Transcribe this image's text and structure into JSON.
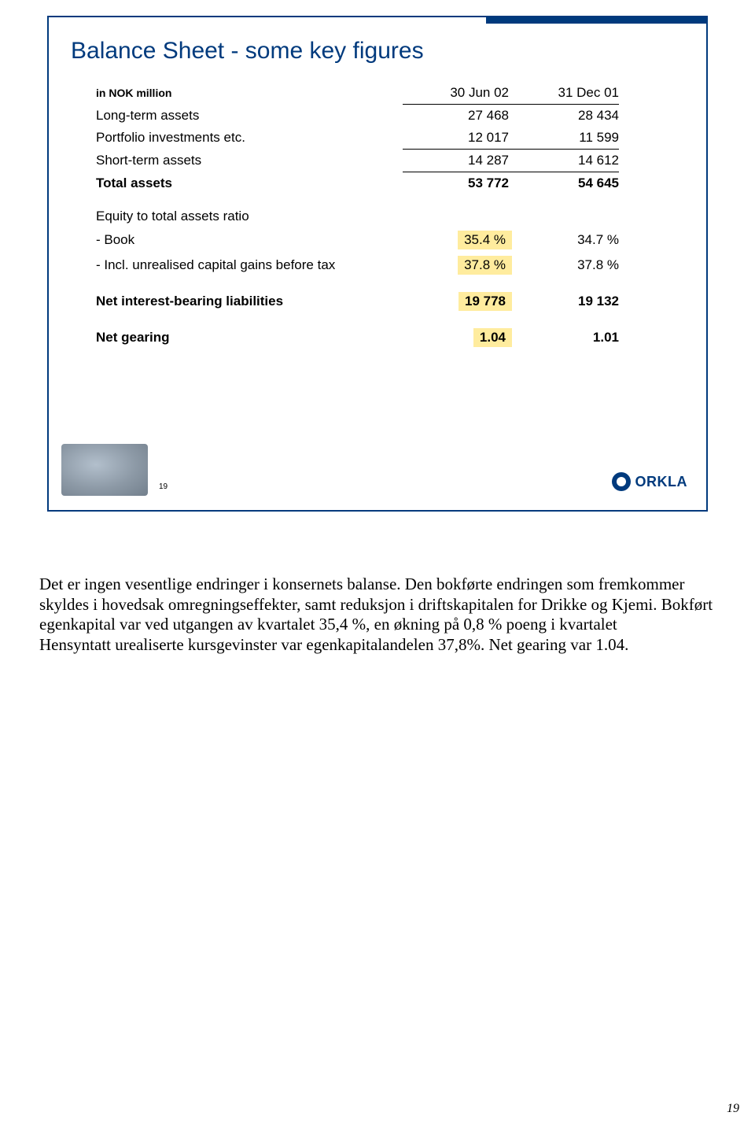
{
  "slide": {
    "title": "Balance Sheet - some key figures",
    "unit_label": "in NOK million",
    "col1": "30 Jun 02",
    "col2": "31 Dec 01",
    "rows": {
      "lta": {
        "label": "Long-term assets",
        "v1": "27 468",
        "v2": "28 434"
      },
      "pfi": {
        "label": "Portfolio investments etc.",
        "v1": "12 017",
        "v2": "11 599"
      },
      "sta": {
        "label": "Short-term assets",
        "v1": "14 287",
        "v2": "14 612"
      },
      "tot": {
        "label": "Total assets",
        "v1": "53 772",
        "v2": "54 645"
      },
      "eqhdr": {
        "label": "Equity to total assets ratio"
      },
      "book": {
        "label": "- Book",
        "v1": "35.4 %",
        "v2": "34.7 %"
      },
      "incl": {
        "label": "- Incl. unrealised capital gains before tax",
        "v1": "37.8 %",
        "v2": "37.8 %"
      },
      "nibl": {
        "label": "Net interest-bearing liabilities",
        "v1": "19 778",
        "v2": "19 132"
      },
      "ngear": {
        "label": "Net gearing",
        "v1": "1.04",
        "v2": "1.01"
      }
    },
    "pagenum": "19",
    "logo_text": "ORKLA"
  },
  "notes": {
    "text": "Det er ingen vesentlige endringer i konsernets balanse. Den bokførte endringen som fremkommer skyldes i hovedsak omregningseffekter, samt reduksjon i driftskapitalen for Drikke og Kjemi. Bokført egenkapital var ved utgangen av kvartalet 35,4 %, en økning på 0,8 % poeng i kvartalet\nHensyntatt urealiserte kursgevinster var egenkapitalandelen 37,8%. Net gearing var 1.04."
  },
  "outer_pagenum": "19"
}
